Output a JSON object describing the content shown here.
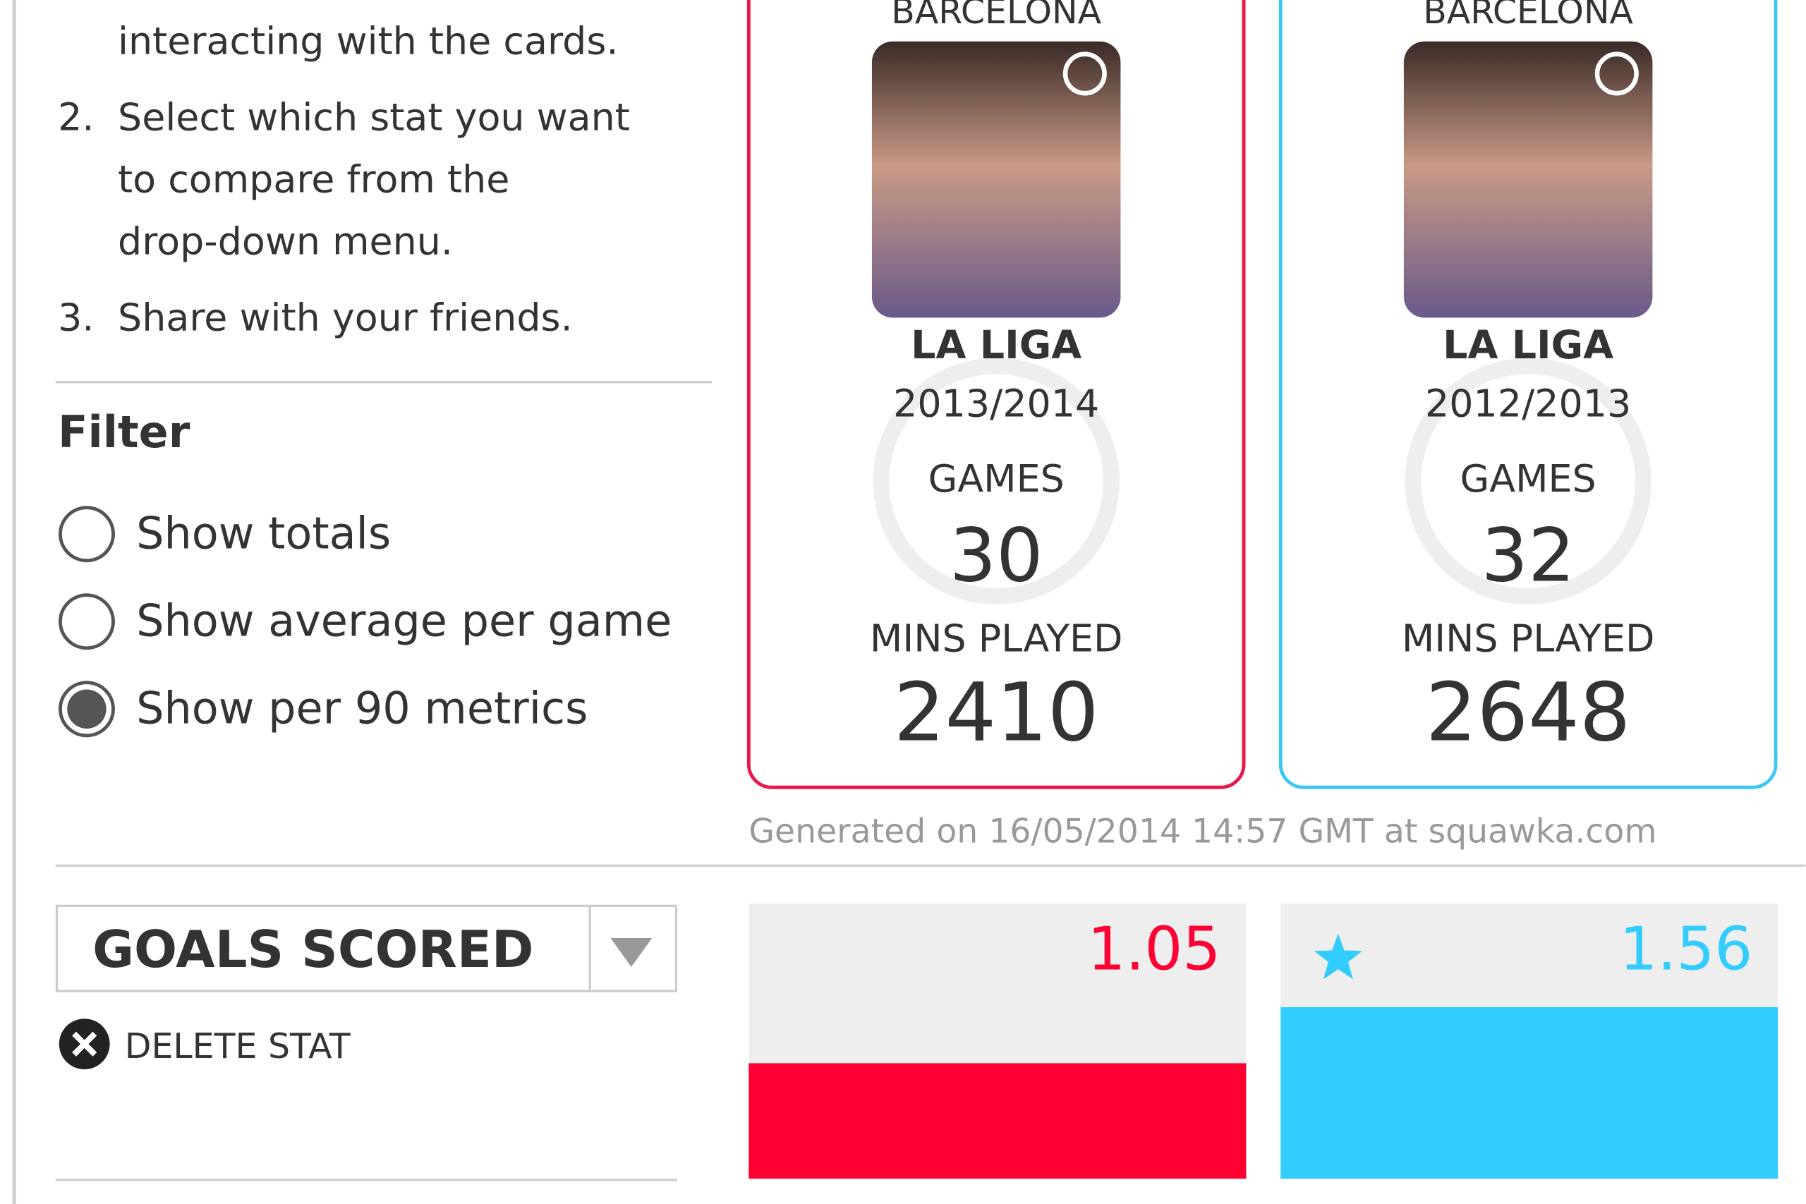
{
  "instructions": [
    {
      "lines": [
        "interacting with the cards."
      ]
    },
    {
      "number": "2.",
      "lines": [
        "Select which stat you want",
        "to compare from the",
        "drop-down menu."
      ]
    },
    {
      "number": "3.",
      "lines": [
        "Share with your friends."
      ]
    }
  ],
  "filter": {
    "title": "Filter",
    "options": [
      "Show totals",
      "Show average per game",
      "Show per 90 metrics"
    ],
    "selected": 2
  },
  "cards": [
    {
      "club": "BARCELONA",
      "league": "LA LIGA",
      "season": "2013/2014",
      "games_label": "GAMES",
      "games": 30,
      "mins_label": "MINS PLAYED",
      "mins": 2410,
      "color": "#e8194a"
    },
    {
      "club": "BARCELONA",
      "league": "LA LIGA",
      "season": "2012/2013",
      "games_label": "GAMES",
      "games": 32,
      "mins_label": "MINS PLAYED",
      "mins": 2648,
      "color": "#3cc8f0"
    }
  ],
  "generated": "Generated on 16/05/2014 14:57 GMT at squawka.com",
  "stat": {
    "name": "GOALS SCORED",
    "delete": "DELETE STAT",
    "values": [
      1.05,
      1.56
    ],
    "colors": [
      "#ff0033",
      "#33ccff"
    ],
    "leader": 1
  }
}
